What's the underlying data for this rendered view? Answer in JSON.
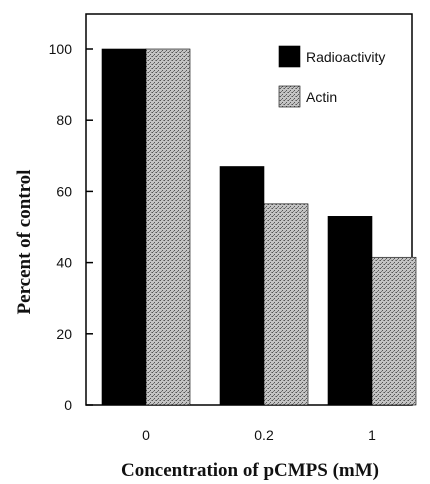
{
  "chart_data": {
    "type": "bar",
    "categories": [
      "0",
      "0.2",
      "1"
    ],
    "series": [
      {
        "name": "Radioactivity",
        "values": [
          100,
          67,
          53
        ],
        "color": "#000000",
        "pattern": "solid"
      },
      {
        "name": "Actin",
        "values": [
          100,
          56.5,
          41.5
        ],
        "color": "#9a9a9a",
        "pattern": "stippled"
      }
    ],
    "xlabel": "Concentration of  pCMPS  (mM)",
    "ylabel": "Percent of control",
    "ylim": [
      0,
      110
    ],
    "yticks": [
      0,
      20,
      40,
      60,
      80,
      100
    ],
    "legend_position": "top-right",
    "grid": false
  }
}
